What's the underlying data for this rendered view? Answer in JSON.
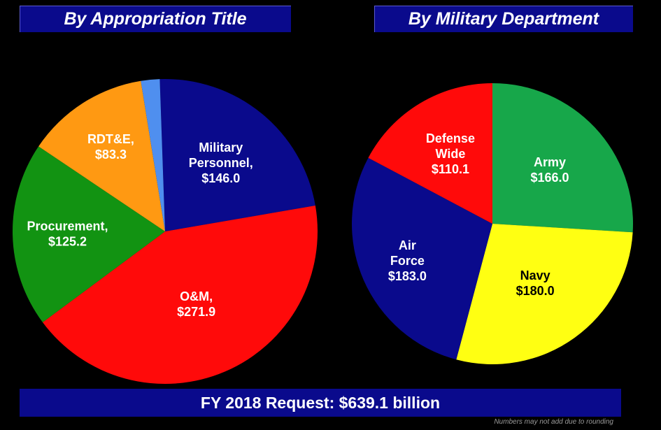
{
  "chart_data": [
    {
      "type": "pie",
      "title": "By Appropriation Title",
      "start_angle": 358,
      "slices": [
        {
          "label_lines": [
            "Military",
            "Personnel,",
            "$146.0"
          ],
          "value": 146.0,
          "color": "#0a0a8c"
        },
        {
          "label_lines": [
            "O&M,",
            "$271.9"
          ],
          "value": 271.9,
          "color": "#ff0a0a"
        },
        {
          "label_lines": [
            "Procurement,",
            "$125.2"
          ],
          "value": 125.2,
          "color": "#129312"
        },
        {
          "label_lines": [
            "RDT&E,",
            "$83.3"
          ],
          "value": 83.3,
          "color": "#ff9912"
        },
        {
          "label_lines": [],
          "value": 12.7,
          "color": "#4f8fef"
        }
      ]
    },
    {
      "type": "pie",
      "title": "By Military Department",
      "start_angle": 0,
      "slices": [
        {
          "label_lines": [
            "Army",
            "$166.0"
          ],
          "value": 166.0,
          "color": "#17a74a"
        },
        {
          "label_lines": [
            "Navy",
            "$180.0"
          ],
          "value": 180.0,
          "color": "#ffff12"
        },
        {
          "label_lines": [
            "Air",
            "Force",
            "$183.0"
          ],
          "value": 183.0,
          "color": "#0a0a8c"
        },
        {
          "label_lines": [
            "Defense",
            "Wide",
            "$110.1"
          ],
          "value": 110.1,
          "color": "#ff0a0a"
        }
      ]
    }
  ],
  "total_label": "FY 2018 Request:  $639.1 billion",
  "footnote": "Numbers may not add due to rounding"
}
